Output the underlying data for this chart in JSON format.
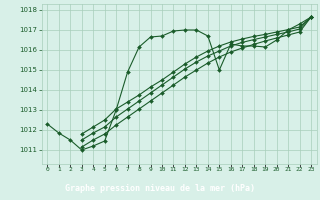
{
  "title": "Graphe pression niveau de la mer (hPa)",
  "bg_color": "#cce8d8",
  "plot_bg_color": "#d8f0e8",
  "grid_color": "#a8cebb",
  "line_color": "#1a5c2a",
  "label_bg": "#2a7a3a",
  "label_fg": "#ffffff",
  "xlim": [
    -0.5,
    23.5
  ],
  "ylim": [
    1010.3,
    1018.3
  ],
  "yticks": [
    1011,
    1012,
    1013,
    1014,
    1015,
    1016,
    1017,
    1018
  ],
  "xticks": [
    0,
    1,
    2,
    3,
    4,
    5,
    6,
    7,
    8,
    9,
    10,
    11,
    12,
    13,
    14,
    15,
    16,
    17,
    18,
    19,
    20,
    21,
    22,
    23
  ],
  "series1": {
    "x": [
      0,
      1,
      2,
      3,
      4,
      5,
      6,
      7,
      8,
      9,
      10,
      11,
      12,
      13,
      14,
      15,
      16,
      17,
      18,
      19,
      20,
      21,
      22,
      23
    ],
    "y": [
      1012.3,
      1011.85,
      1011.5,
      1011.0,
      1011.2,
      1011.45,
      1013.0,
      1014.9,
      1016.15,
      1016.65,
      1016.7,
      1016.95,
      1017.0,
      1017.0,
      1016.7,
      1015.0,
      1016.3,
      1016.2,
      1016.2,
      1016.15,
      1016.5,
      1017.0,
      1017.3,
      1017.65
    ]
  },
  "series2": {
    "x": [
      3,
      4,
      5,
      6,
      7,
      8,
      9,
      10,
      11,
      12,
      13,
      14,
      15,
      16,
      17,
      18,
      19,
      20,
      21,
      22,
      23
    ],
    "y": [
      1011.8,
      1012.15,
      1012.5,
      1013.05,
      1013.4,
      1013.75,
      1014.15,
      1014.5,
      1014.9,
      1015.3,
      1015.65,
      1015.95,
      1016.2,
      1016.4,
      1016.55,
      1016.68,
      1016.78,
      1016.9,
      1017.02,
      1017.15,
      1017.65
    ]
  },
  "series3": {
    "x": [
      3,
      4,
      5,
      6,
      7,
      8,
      9,
      10,
      11,
      12,
      13,
      14,
      15,
      16,
      17,
      18,
      19,
      20,
      21,
      22,
      23
    ],
    "y": [
      1011.5,
      1011.85,
      1012.15,
      1012.65,
      1013.05,
      1013.45,
      1013.85,
      1014.25,
      1014.65,
      1015.05,
      1015.4,
      1015.7,
      1015.95,
      1016.2,
      1016.38,
      1016.52,
      1016.65,
      1016.78,
      1016.9,
      1017.05,
      1017.65
    ]
  },
  "series4": {
    "x": [
      3,
      4,
      5,
      6,
      7,
      8,
      9,
      10,
      11,
      12,
      13,
      14,
      15,
      16,
      17,
      18,
      19,
      20,
      21,
      22,
      23
    ],
    "y": [
      1011.15,
      1011.5,
      1011.8,
      1012.25,
      1012.65,
      1013.05,
      1013.45,
      1013.85,
      1014.25,
      1014.65,
      1015.0,
      1015.35,
      1015.65,
      1015.9,
      1016.1,
      1016.28,
      1016.45,
      1016.6,
      1016.75,
      1016.9,
      1017.65
    ]
  }
}
